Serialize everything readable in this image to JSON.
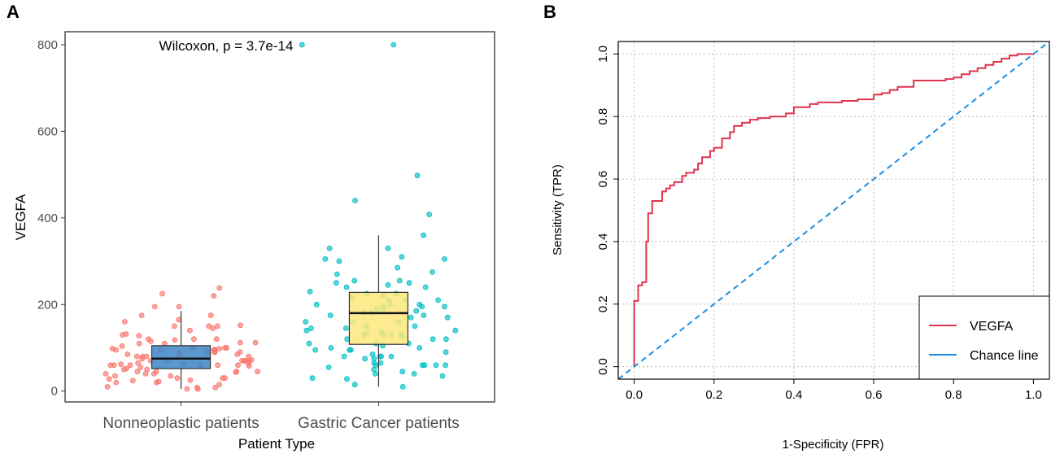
{
  "panels": {
    "A": {
      "label": "A"
    },
    "B": {
      "label": "B"
    }
  },
  "chart_data": [
    {
      "type": "box+jitter",
      "panel": "A",
      "xlabel": "Patient Type",
      "ylabel": "VEGFA",
      "annotation": "Wilcoxon, p = 3.7e-14",
      "ylim": [
        -25,
        830
      ],
      "yticks": [
        0,
        200,
        400,
        600,
        800
      ],
      "categories": [
        "Nonneoplastic patients",
        "Gastric Cancer patients"
      ],
      "colors": {
        "nonneoplastic_points": "#f8766d",
        "gastric_points": "#00bfc4",
        "nonneoplastic_box": "#3d85c6",
        "gastric_box": "#fbe87b"
      },
      "boxes": [
        {
          "category": "Nonneoplastic patients",
          "whisker_low": 5,
          "q1": 52,
          "median": 75,
          "q3": 105,
          "whisker_high": 185
        },
        {
          "category": "Gastric Cancer patients",
          "whisker_low": 10,
          "q1": 108,
          "median": 180,
          "q3": 228,
          "whisker_high": 360
        }
      ],
      "series": [
        {
          "name": "Nonneoplastic patients",
          "values": [
            72,
            65,
            110,
            95,
            88,
            52,
            175,
            120,
            60,
            40,
            22,
            8,
            150,
            100,
            80,
            70,
            35,
            60,
            45,
            90,
            175,
            130,
            98,
            62,
            10,
            85,
            58,
            45,
            25,
            110,
            195,
            140,
            120,
            90,
            80,
            60,
            70,
            50,
            35,
            20,
            5,
            100,
            90,
            70,
            60,
            40,
            150,
            112,
            85,
            75,
            50,
            30,
            28,
            80,
            100,
            118,
            95,
            72,
            65,
            45,
            195,
            152,
            128,
            104,
            96,
            78,
            60,
            44,
            24,
            8,
            220,
            238,
            160,
            145,
            120,
            98,
            80,
            62,
            45,
            30,
            15,
            112,
            90,
            70,
            55,
            225,
            40,
            20,
            115,
            30,
            5,
            60,
            95,
            150,
            165,
            132,
            70
          ]
        },
        {
          "name": "Gastric Cancer patients",
          "values": [
            800,
            800,
            330,
            310,
            285,
            255,
            225,
            200,
            175,
            160,
            120,
            95,
            60,
            28,
            440,
            270,
            275,
            145,
            110,
            305,
            245,
            210,
            170,
            130,
            80,
            215,
            200,
            140,
            60,
            190,
            195,
            408,
            240,
            130,
            60,
            50,
            135,
            100,
            40,
            225,
            175,
            150,
            105,
            75,
            45,
            200,
            160,
            125,
            55,
            80,
            305,
            498,
            255,
            210,
            170,
            135,
            95,
            65,
            15,
            240,
            180,
            220,
            85,
            30,
            190,
            250,
            185,
            130,
            60,
            210,
            130,
            80,
            35,
            100,
            145,
            300,
            150,
            360,
            120,
            80,
            330,
            110,
            60,
            10,
            250,
            195,
            160,
            120,
            95,
            65,
            140,
            195,
            40,
            90,
            75,
            110,
            230,
            180
          ]
        }
      ]
    },
    {
      "type": "line",
      "panel": "B",
      "xlabel": "1-Specificity (FPR)",
      "ylabel": "Sensitivity (TPR)",
      "xlim": [
        -0.04,
        1.04
      ],
      "ylim": [
        -0.04,
        1.04
      ],
      "xticks": [
        "0.0",
        "0.2",
        "0.4",
        "0.6",
        "0.8",
        "1.0"
      ],
      "yticks": [
        "0.0",
        "0.2",
        "0.4",
        "0.6",
        "0.8",
        "1.0"
      ],
      "grid": true,
      "legend": {
        "position": "bottom-right",
        "entries": [
          "VEGFA",
          "Chance line"
        ]
      },
      "series": [
        {
          "name": "VEGFA",
          "color": "#e0344b",
          "style": "solid",
          "x": [
            0,
            0,
            0.01,
            0.01,
            0.02,
            0.02,
            0.03,
            0.03,
            0.035,
            0.035,
            0.045,
            0.045,
            0.07,
            0.07,
            0.08,
            0.08,
            0.09,
            0.09,
            0.1,
            0.1,
            0.12,
            0.12,
            0.13,
            0.13,
            0.15,
            0.15,
            0.16,
            0.16,
            0.17,
            0.17,
            0.19,
            0.19,
            0.2,
            0.2,
            0.22,
            0.22,
            0.24,
            0.24,
            0.25,
            0.25,
            0.27,
            0.27,
            0.29,
            0.29,
            0.31,
            0.31,
            0.34,
            0.34,
            0.38,
            0.38,
            0.4,
            0.4,
            0.44,
            0.44,
            0.46,
            0.46,
            0.52,
            0.52,
            0.56,
            0.56,
            0.6,
            0.6,
            0.62,
            0.62,
            0.64,
            0.64,
            0.66,
            0.66,
            0.7,
            0.7,
            0.78,
            0.78,
            0.8,
            0.8,
            0.82,
            0.82,
            0.84,
            0.84,
            0.86,
            0.86,
            0.88,
            0.88,
            0.9,
            0.9,
            0.92,
            0.92,
            0.94,
            0.94,
            0.96,
            0.96,
            1.0
          ],
          "y": [
            0,
            0.21,
            0.21,
            0.26,
            0.26,
            0.27,
            0.27,
            0.4,
            0.4,
            0.49,
            0.49,
            0.53,
            0.53,
            0.56,
            0.56,
            0.57,
            0.57,
            0.58,
            0.58,
            0.59,
            0.59,
            0.61,
            0.61,
            0.62,
            0.62,
            0.63,
            0.63,
            0.65,
            0.65,
            0.67,
            0.67,
            0.69,
            0.69,
            0.7,
            0.7,
            0.73,
            0.73,
            0.75,
            0.75,
            0.77,
            0.77,
            0.78,
            0.78,
            0.79,
            0.79,
            0.795,
            0.795,
            0.8,
            0.8,
            0.81,
            0.81,
            0.83,
            0.83,
            0.84,
            0.84,
            0.845,
            0.845,
            0.85,
            0.85,
            0.855,
            0.855,
            0.87,
            0.87,
            0.875,
            0.875,
            0.885,
            0.885,
            0.895,
            0.895,
            0.915,
            0.915,
            0.92,
            0.92,
            0.925,
            0.925,
            0.935,
            0.935,
            0.945,
            0.945,
            0.955,
            0.955,
            0.965,
            0.965,
            0.975,
            0.975,
            0.985,
            0.985,
            0.995,
            0.995,
            1.0,
            1.0
          ]
        },
        {
          "name": "Chance line",
          "color": "#1a8fe3",
          "style": "dashed",
          "x": [
            -0.04,
            1.04
          ],
          "y": [
            -0.04,
            1.04
          ]
        }
      ]
    }
  ]
}
